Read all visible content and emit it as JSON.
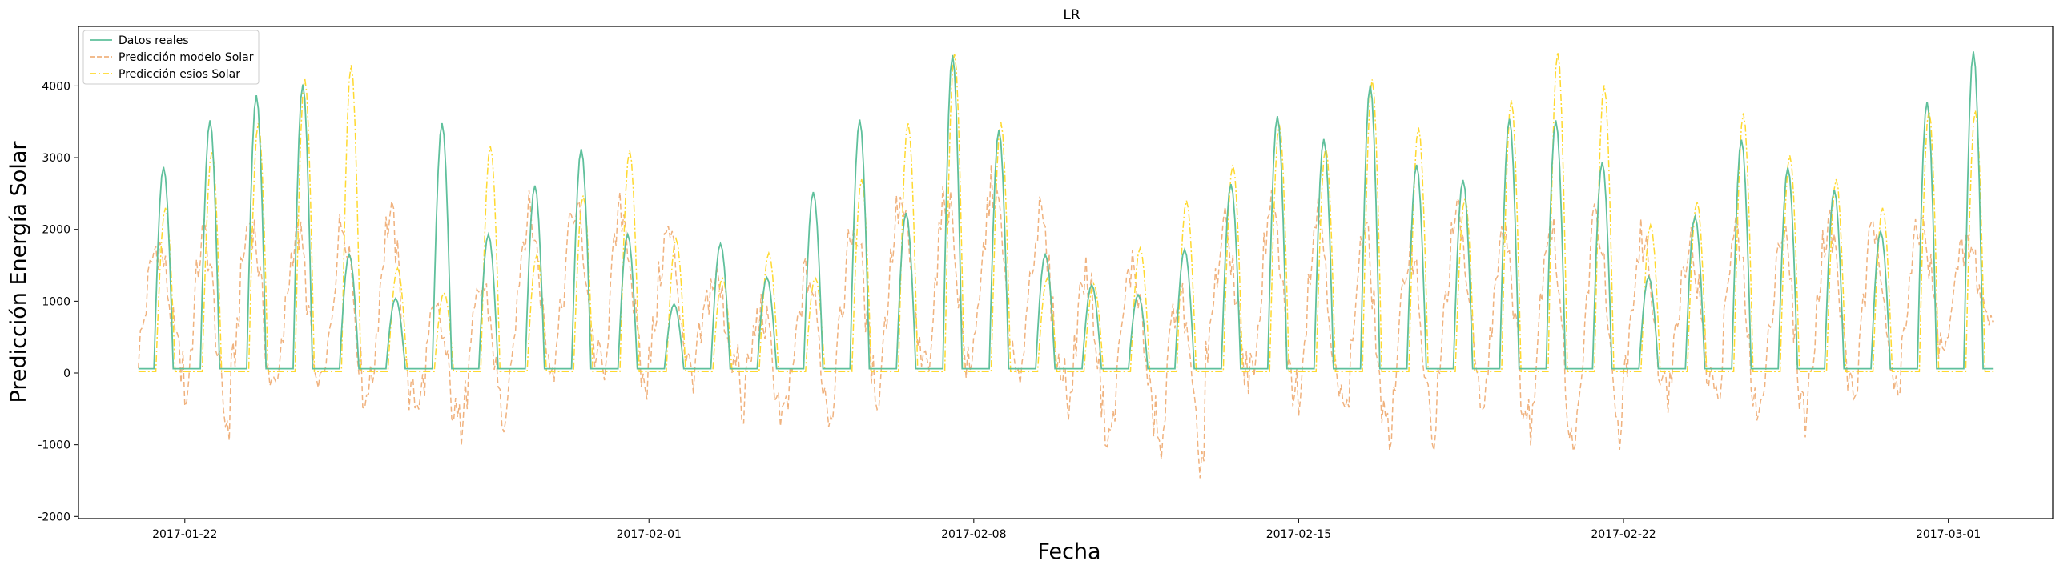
{
  "chart_data": {
    "type": "line",
    "title": "LR",
    "xlabel": "Fecha",
    "ylabel": "Predicción Energía Solar",
    "x_tick_labels": [
      "2017-01-22",
      "2017-02-01",
      "2017-02-08",
      "2017-02-15",
      "2017-02-22",
      "2017-03-01"
    ],
    "y_ticks": [
      -2000,
      -1000,
      0,
      1000,
      2000,
      3000,
      4000
    ],
    "xlim": [
      "2017-01-19T17:00",
      "2017-03-03T06:00"
    ],
    "ylim": [
      -2030,
      4830
    ],
    "grid": false,
    "legend_position": "top-left",
    "x_start": "2017-01-21",
    "x_end": "2017-03-02",
    "series": [
      {
        "name": "Datos reales",
        "color": "#5fc09c",
        "style": "solid",
        "daily_peak": [
          2870,
          3520,
          3870,
          4020,
          1650,
          1040,
          3480,
          1930,
          2610,
          3120,
          1930,
          960,
          1800,
          1330,
          2520,
          3530,
          2230,
          4430,
          3390,
          1650,
          1230,
          1090,
          1720,
          2630,
          3580,
          3260,
          4010,
          2900,
          2690,
          3540,
          3520,
          2940,
          1340,
          2180,
          3250,
          2860,
          2550,
          1970,
          3780,
          4480
        ]
      },
      {
        "name": "Predicción modelo Solar",
        "color": "#f0b27e",
        "style": "dashed",
        "daily_peak": [
          2120,
          2440,
          2640,
          2460,
          2620,
          2700,
          1100,
          1600,
          2650,
          2720,
          2760,
          2330,
          1560,
          1120,
          1750,
          2530,
          2790,
          2920,
          3150,
          2570,
          1850,
          1930,
          1590,
          2380,
          2760,
          2790,
          2530,
          2340,
          2630,
          2640,
          2730,
          2810,
          2280,
          2230,
          2480,
          2510,
          2520,
          2530,
          2440,
          1970
        ],
        "daily_min": [
          -150,
          -1230,
          -760,
          -820,
          -850,
          -950,
          -1060,
          -1100,
          -350,
          -300,
          -700,
          -400,
          -200,
          -900,
          -950,
          -700,
          -400,
          -500,
          -550,
          -500,
          -1300,
          -1100,
          -1700,
          -400,
          -800,
          -1000,
          -1500,
          -1450,
          -700,
          -1150,
          -1500,
          -1600,
          -700,
          -600,
          -1250,
          -1100,
          -600,
          -900,
          -150,
          500
        ]
      },
      {
        "name": "Predicción esios Solar",
        "color": "#ffd92f",
        "style": "dashdot",
        "daily_peak": [
          2300,
          3090,
          3480,
          4110,
          4290,
          1460,
          1120,
          3160,
          1640,
          2470,
          3100,
          1870,
          1320,
          1670,
          1330,
          2700,
          3490,
          4450,
          3500,
          1320,
          1240,
          1740,
          2400,
          2900,
          3460,
          3140,
          4090,
          3420,
          2430,
          3800,
          4470,
          4010,
          2060,
          2390,
          3620,
          3030,
          2700,
          2300,
          3660,
          3660
        ]
      }
    ]
  }
}
